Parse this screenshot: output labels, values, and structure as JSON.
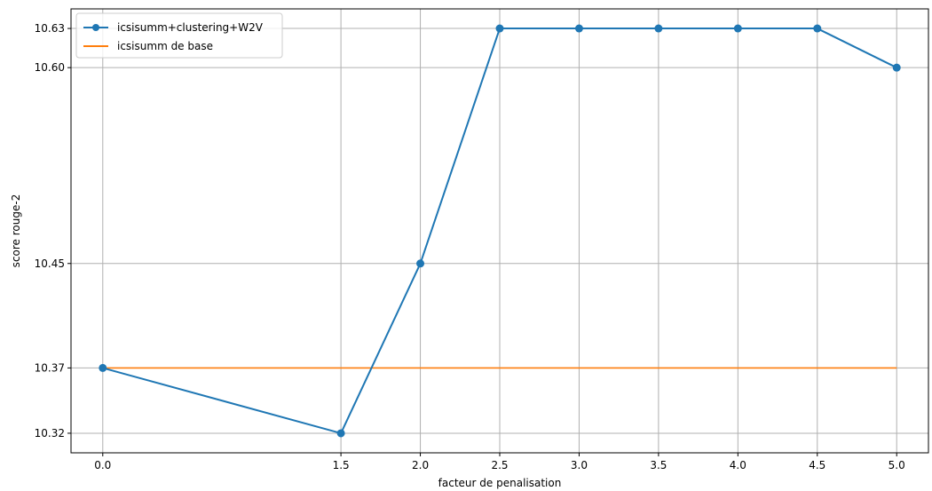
{
  "chart_data": {
    "type": "line",
    "title": "",
    "xlabel": "facteur de penalisation",
    "ylabel": "score rouge-2",
    "xlim": [
      -0.2,
      5.2
    ],
    "ylim": [
      10.305,
      10.645
    ],
    "x_ticks": [
      0.0,
      1.5,
      2.0,
      2.5,
      3.0,
      3.5,
      4.0,
      4.5,
      5.0
    ],
    "x_tick_labels": [
      "0.0",
      "1.5",
      "2.0",
      "2.5",
      "3.0",
      "3.5",
      "4.0",
      "4.5",
      "5.0"
    ],
    "y_ticks": [
      10.32,
      10.37,
      10.45,
      10.6,
      10.63
    ],
    "y_tick_labels": [
      "10.32",
      "10.37",
      "10.45",
      "10.60",
      "10.63"
    ],
    "grid": true,
    "legend_position": "upper-left",
    "series": [
      {
        "name": "icsisumm+clustering+W2V",
        "color": "#1f77b4",
        "marker": "circle",
        "x": [
          0.0,
          1.5,
          2.0,
          2.5,
          3.0,
          3.5,
          4.0,
          4.5,
          5.0
        ],
        "y": [
          10.37,
          10.32,
          10.45,
          10.63,
          10.63,
          10.63,
          10.63,
          10.63,
          10.6
        ]
      },
      {
        "name": "icsisumm de base",
        "color": "#ff7f0e",
        "marker": "none",
        "x": [
          0.0,
          5.0
        ],
        "y": [
          10.37,
          10.37
        ]
      }
    ]
  }
}
